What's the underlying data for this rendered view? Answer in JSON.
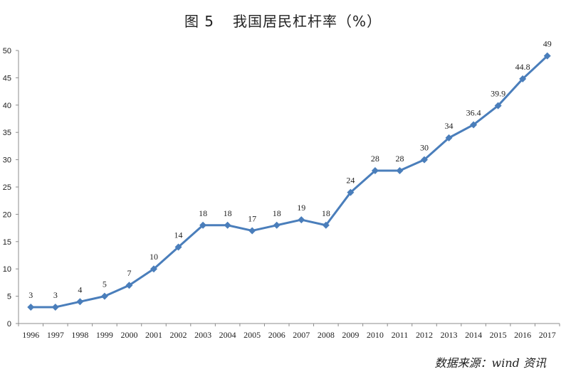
{
  "title": {
    "figure_no": "图 5",
    "text": "我国居民杠杆率（%）"
  },
  "source": "数据来源：wind 资讯",
  "colors": {
    "line": "#4a7ebb",
    "axis": "#8c8c8c",
    "text": "#222222"
  },
  "chart_data": {
    "type": "line",
    "title": "图5 我国居民杠杆率（%）",
    "xlabel": "",
    "ylabel": "",
    "categories": [
      "1996",
      "1997",
      "1998",
      "1999",
      "2000",
      "2001",
      "2002",
      "2003",
      "2004",
      "2005",
      "2006",
      "2007",
      "2008",
      "2009",
      "2010",
      "2011",
      "2012",
      "2013",
      "2014",
      "2015",
      "2016",
      "2017"
    ],
    "series": [
      {
        "name": "居民杠杆率",
        "values": [
          3,
          3,
          4,
          5,
          7,
          10,
          14,
          18,
          18,
          17,
          18,
          19,
          18,
          24,
          28,
          28,
          30,
          34,
          36.4,
          39.9,
          44.8,
          49
        ]
      }
    ],
    "data_labels": [
      "3",
      "3",
      "4",
      "5",
      "7",
      "10",
      "14",
      "18",
      "18",
      "17",
      "18",
      "19",
      "18",
      "24",
      "28",
      "28",
      "30",
      "34",
      "36.4",
      "39.9",
      "44.8",
      "49"
    ],
    "ylim": [
      0,
      50
    ],
    "yticks": [
      0,
      5,
      10,
      15,
      20,
      25,
      30,
      35,
      40,
      45,
      50
    ],
    "grid": false,
    "legend": null,
    "marker": "diamond",
    "annotation": "数据来源：wind 资讯"
  }
}
